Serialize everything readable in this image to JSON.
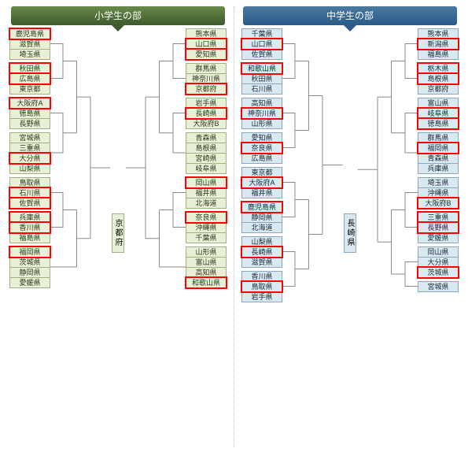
{
  "elementary": {
    "title": "小学生の部",
    "champion": "京都府",
    "left": [
      {
        "teams": [
          "鹿児島県",
          "滋賀県",
          "埼玉県"
        ],
        "hl": [
          0
        ]
      },
      {
        "teams": [
          "秋田県",
          "広島県",
          "東京都"
        ],
        "hl": [
          0,
          1
        ]
      },
      {
        "teams": [
          "大阪府A",
          "徳島県",
          "長野県"
        ],
        "hl": [
          0
        ]
      },
      {
        "teams": [
          "宮城県",
          "三重県",
          "大分県",
          "山梨県"
        ],
        "hl": [
          2
        ]
      },
      {
        "teams": [
          "鳥取県",
          "石川県",
          "佐賀県"
        ],
        "hl": [
          1,
          2
        ]
      },
      {
        "teams": [
          "兵庫県",
          "香川県",
          "福島県"
        ],
        "hl": [
          0,
          1
        ]
      },
      {
        "teams": [
          "福岡県",
          "茨城県",
          "静岡県",
          "愛媛県"
        ],
        "hl": [
          0
        ]
      }
    ],
    "right": [
      {
        "teams": [
          "熊本県",
          "山口県",
          "愛知県"
        ],
        "hl": [
          1,
          2
        ]
      },
      {
        "teams": [
          "群馬県",
          "神奈川県",
          "京都府"
        ],
        "hl": [
          2
        ]
      },
      {
        "teams": [
          "岩手県",
          "長崎県",
          "大阪府B"
        ],
        "hl": [
          1
        ]
      },
      {
        "teams": [
          "青森県",
          "島根県",
          "宮崎県",
          "岐阜県"
        ],
        "hl": []
      },
      {
        "teams": [
          "岡山県",
          "福井県",
          "北海道"
        ],
        "hl": [
          0
        ]
      },
      {
        "teams": [
          "奈良県",
          "沖縄県",
          "千葉県"
        ],
        "hl": [
          0
        ]
      },
      {
        "teams": [
          "山形県",
          "富山県",
          "高知県",
          "和歌山県"
        ],
        "hl": [
          3
        ]
      }
    ]
  },
  "junior": {
    "title": "中学生の部",
    "champion": "長崎県",
    "left": [
      {
        "teams": [
          "千葉県",
          "山口県",
          "佐賀県"
        ],
        "hl": [
          1
        ]
      },
      {
        "teams": [
          "和歌山県",
          "秋田県",
          "石川県"
        ],
        "hl": [
          0
        ]
      },
      {
        "teams": [
          "高知県",
          "神奈川県",
          "山形県"
        ],
        "hl": [
          1
        ]
      },
      {
        "teams": [
          "愛知県",
          "奈良県",
          "広島県"
        ],
        "hl": [
          1
        ]
      },
      {
        "teams": [
          "東京都",
          "大阪府A",
          "福井県"
        ],
        "hl": [
          1
        ]
      },
      {
        "teams": [
          "鹿児島県",
          "静岡県",
          "北海道"
        ],
        "hl": [
          0
        ]
      },
      {
        "teams": [
          "山梨県",
          "長崎県",
          "滋賀県"
        ],
        "hl": [
          1
        ]
      },
      {
        "teams": [
          "香川県",
          "鳥取県",
          "岩手県"
        ],
        "hl": [
          1
        ]
      }
    ],
    "right": [
      {
        "teams": [
          "熊本県",
          "新潟県",
          "福島県"
        ],
        "hl": [
          1
        ]
      },
      {
        "teams": [
          "栃木県",
          "島根県",
          "京都府"
        ],
        "hl": [
          0,
          1
        ]
      },
      {
        "teams": [
          "富山県",
          "岐阜県",
          "徳島県"
        ],
        "hl": [
          1,
          2
        ]
      },
      {
        "teams": [
          "群馬県",
          "福岡県",
          "青森県",
          "兵庫県"
        ],
        "hl": [
          1
        ]
      },
      {
        "teams": [
          "埼玉県",
          "沖縄県",
          "大阪府B"
        ],
        "hl": [
          2
        ]
      },
      {
        "teams": [
          "三重県",
          "長野県",
          "愛媛県"
        ],
        "hl": [
          0,
          1
        ]
      },
      {
        "teams": [
          "岡山県",
          "大分県",
          "茨城県"
        ],
        "hl": [
          2
        ]
      },
      {
        "teams": [
          "宮城県"
        ],
        "hl": []
      }
    ]
  }
}
